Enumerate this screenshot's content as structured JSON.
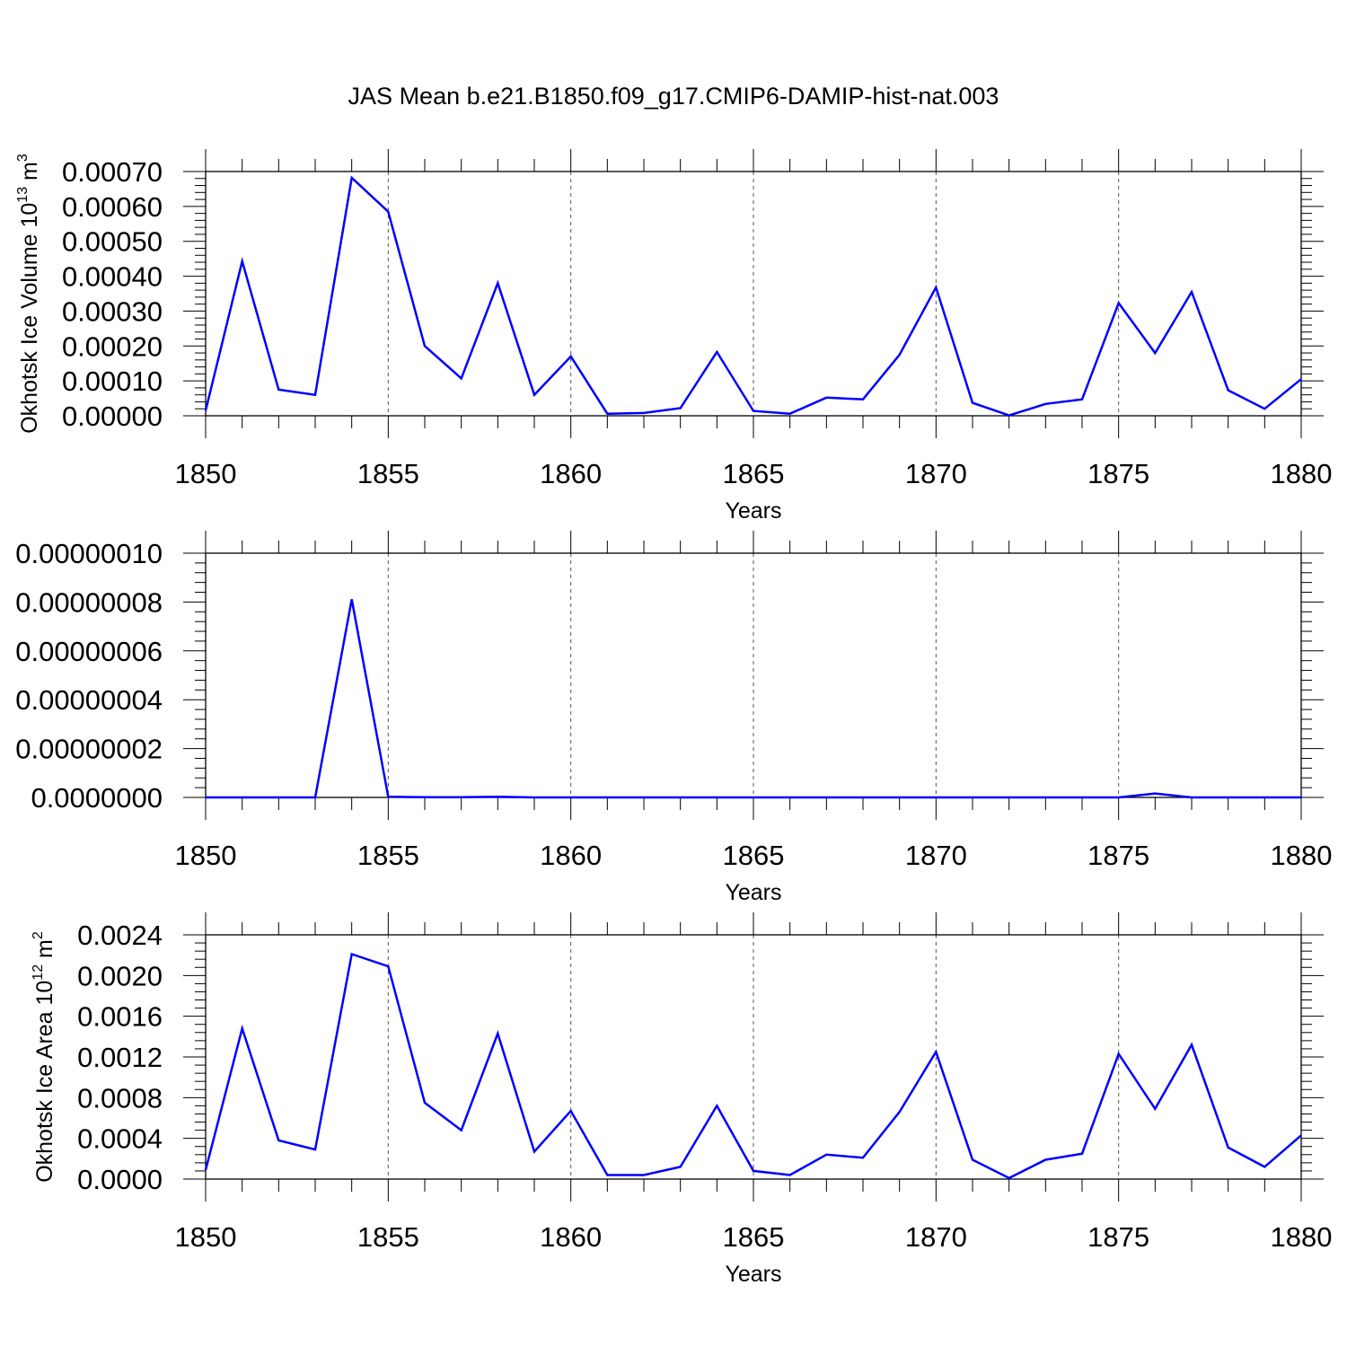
{
  "title": "JAS Mean b.e21.B1850.f09_g17.CMIP6-DAMIP-hist-nat.003",
  "colors": {
    "line": "#0000ff",
    "axes": "#000000",
    "grid": "#555555"
  },
  "chart_data": [
    {
      "type": "line",
      "xlabel": "Years",
      "ylabel": "Okhotsk Ice Volume 10",
      "ylabel_exp": "13",
      "ylabel_unit": "m",
      "ylabel_unit_exp": "3",
      "xlim": [
        1850,
        1880
      ],
      "ylim": [
        0,
        0.0007
      ],
      "xticks": [
        "1850",
        "1855",
        "1860",
        "1865",
        "1870",
        "1875",
        "1880"
      ],
      "yticks": [
        "0.00000",
        "0.00010",
        "0.00020",
        "0.00030",
        "0.00040",
        "0.00050",
        "0.00060",
        "0.00070"
      ],
      "grid": "vertical dashed at major x ticks",
      "x": [
        1850,
        1851,
        1852,
        1853,
        1854,
        1855,
        1856,
        1857,
        1858,
        1859,
        1860,
        1861,
        1862,
        1863,
        1864,
        1865,
        1866,
        1867,
        1868,
        1869,
        1870,
        1871,
        1872,
        1873,
        1874,
        1875,
        1876,
        1877,
        1878,
        1879,
        1880
      ],
      "series": [
        {
          "values": [
            1.5e-05,
            0.000443,
            7.5e-05,
            6e-05,
            0.000682,
            0.000585,
            0.0002,
            0.000107,
            0.00038,
            6e-05,
            0.00017,
            6e-06,
            8e-06,
            2.2e-05,
            0.000183,
            1.4e-05,
            6e-06,
            5.2e-05,
            4.7e-05,
            0.000175,
            0.000368,
            3.7e-05,
            1e-06,
            3.4e-05,
            4.7e-05,
            0.000323,
            0.00018,
            0.000355,
            7.3e-05,
            2e-05,
            0.000105
          ]
        }
      ]
    },
    {
      "type": "line",
      "xlabel": "Years",
      "ylabel": "",
      "xlim": [
        1850,
        1880
      ],
      "ylim": [
        0,
        1e-07
      ],
      "xticks": [
        "1850",
        "1855",
        "1860",
        "1865",
        "1870",
        "1875",
        "1880"
      ],
      "yticks": [
        "0.0000000",
        "0.00000002",
        "0.00000004",
        "0.00000006",
        "0.00000008",
        "0.00000010"
      ],
      "grid": "vertical dashed at major x ticks",
      "x": [
        1850,
        1851,
        1852,
        1853,
        1854,
        1855,
        1856,
        1857,
        1858,
        1859,
        1860,
        1861,
        1862,
        1863,
        1864,
        1865,
        1866,
        1867,
        1868,
        1869,
        1870,
        1871,
        1872,
        1873,
        1874,
        1875,
        1876,
        1877,
        1878,
        1879,
        1880
      ],
      "series": [
        {
          "values": [
            0,
            0,
            0,
            0,
            8.11e-08,
            3e-10,
            1e-10,
            1e-10,
            3e-10,
            0,
            0,
            0,
            0,
            0,
            0,
            0,
            0,
            0,
            0,
            0,
            0,
            0,
            0,
            0,
            0,
            0,
            1.6e-09,
            0,
            0,
            0,
            0
          ]
        }
      ]
    },
    {
      "type": "line",
      "xlabel": "Years",
      "ylabel": "Okhotsk Ice Area 10",
      "ylabel_exp": "12",
      "ylabel_unit": "m",
      "ylabel_unit_exp": "2",
      "xlim": [
        1850,
        1880
      ],
      "ylim": [
        0,
        0.0024
      ],
      "xticks": [
        "1850",
        "1855",
        "1860",
        "1865",
        "1870",
        "1875",
        "1880"
      ],
      "yticks": [
        "0.0000",
        "0.0004",
        "0.0008",
        "0.0012",
        "0.0016",
        "0.0020",
        "0.0024"
      ],
      "grid": "vertical dashed at major x ticks",
      "x": [
        1850,
        1851,
        1852,
        1853,
        1854,
        1855,
        1856,
        1857,
        1858,
        1859,
        1860,
        1861,
        1862,
        1863,
        1864,
        1865,
        1866,
        1867,
        1868,
        1869,
        1870,
        1871,
        1872,
        1873,
        1874,
        1875,
        1876,
        1877,
        1878,
        1879,
        1880
      ],
      "series": [
        {
          "values": [
            9e-05,
            0.00148,
            0.00038,
            0.00029,
            0.00221,
            0.00209,
            0.00075,
            0.00048,
            0.00143,
            0.00027,
            0.00067,
            4e-05,
            4e-05,
            0.00012,
            0.00072,
            8e-05,
            4e-05,
            0.00024,
            0.00021,
            0.00066,
            0.00125,
            0.00019,
            1e-05,
            0.00019,
            0.00025,
            0.00123,
            0.00069,
            0.00132,
            0.00031,
            0.00012,
            0.00043
          ]
        }
      ]
    }
  ]
}
